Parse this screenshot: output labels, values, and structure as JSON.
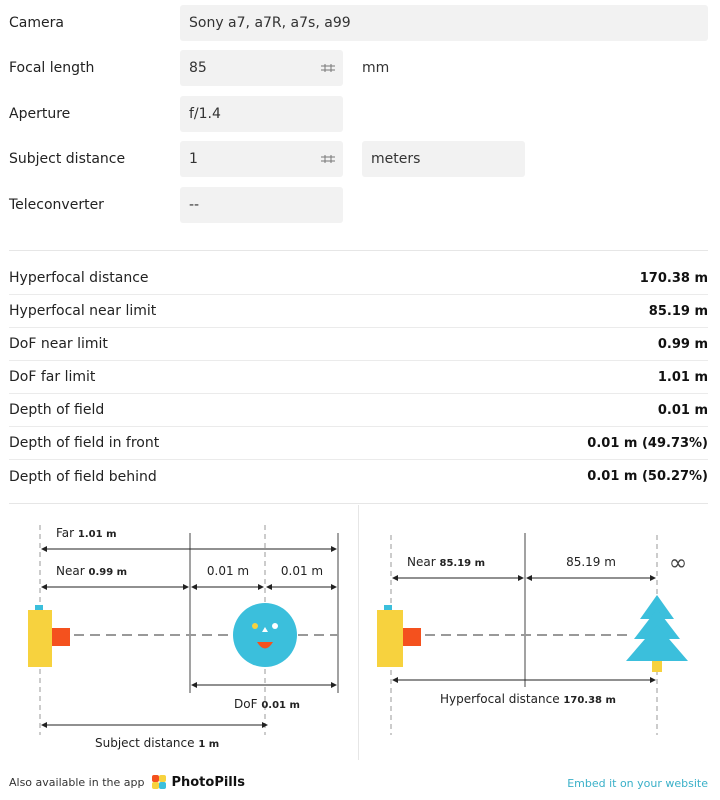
{
  "form": {
    "camera": {
      "label": "Camera",
      "value": "Sony a7, a7R, a7s, a99"
    },
    "focal_length": {
      "label": "Focal length",
      "value": "85",
      "unit": "mm"
    },
    "aperture": {
      "label": "Aperture",
      "value": "f/1.4"
    },
    "subject_distance": {
      "label": "Subject distance",
      "value": "1",
      "unit": "meters"
    },
    "teleconverter": {
      "label": "Teleconverter",
      "value": "--"
    }
  },
  "results": [
    {
      "label": "Hyperfocal distance",
      "value": "170.38 m"
    },
    {
      "label": "Hyperfocal near limit",
      "value": "85.19 m"
    },
    {
      "label": "DoF near limit",
      "value": "0.99 m"
    },
    {
      "label": "DoF far limit",
      "value": "1.01 m"
    },
    {
      "label": "Depth of field",
      "value": "0.01 m"
    },
    {
      "label": "Depth of field in front",
      "value": "0.01 m (49.73%)"
    },
    {
      "label": "Depth of field behind",
      "value": "0.01 m (50.27%)"
    }
  ],
  "diagram_left": {
    "far_label": "Far",
    "far_value": "1.01 m",
    "near_label": "Near",
    "near_value": "0.99 m",
    "front_value": "0.01 m",
    "behind_value": "0.01 m",
    "dof_label": "DoF",
    "dof_value": "0.01 m",
    "subject_label": "Subject distance",
    "subject_value": "1 m"
  },
  "diagram_right": {
    "near_label": "Near",
    "near_value": "85.19 m",
    "beyond_value": "85.19 m",
    "infinity_symbol": "∞",
    "hyperfocal_label": "Hyperfocal distance",
    "hyperfocal_value": "170.38 m"
  },
  "footer": {
    "available_text": "Also available in the app",
    "app_name": "PhotoPills",
    "embed_link": "Embed it on your website"
  },
  "colors": {
    "accent": "#3ab0c8",
    "camera_body": "#f7d23e",
    "lens": "#f4511e",
    "face": "#3bbfdc",
    "tree": "#3bbfdc"
  }
}
